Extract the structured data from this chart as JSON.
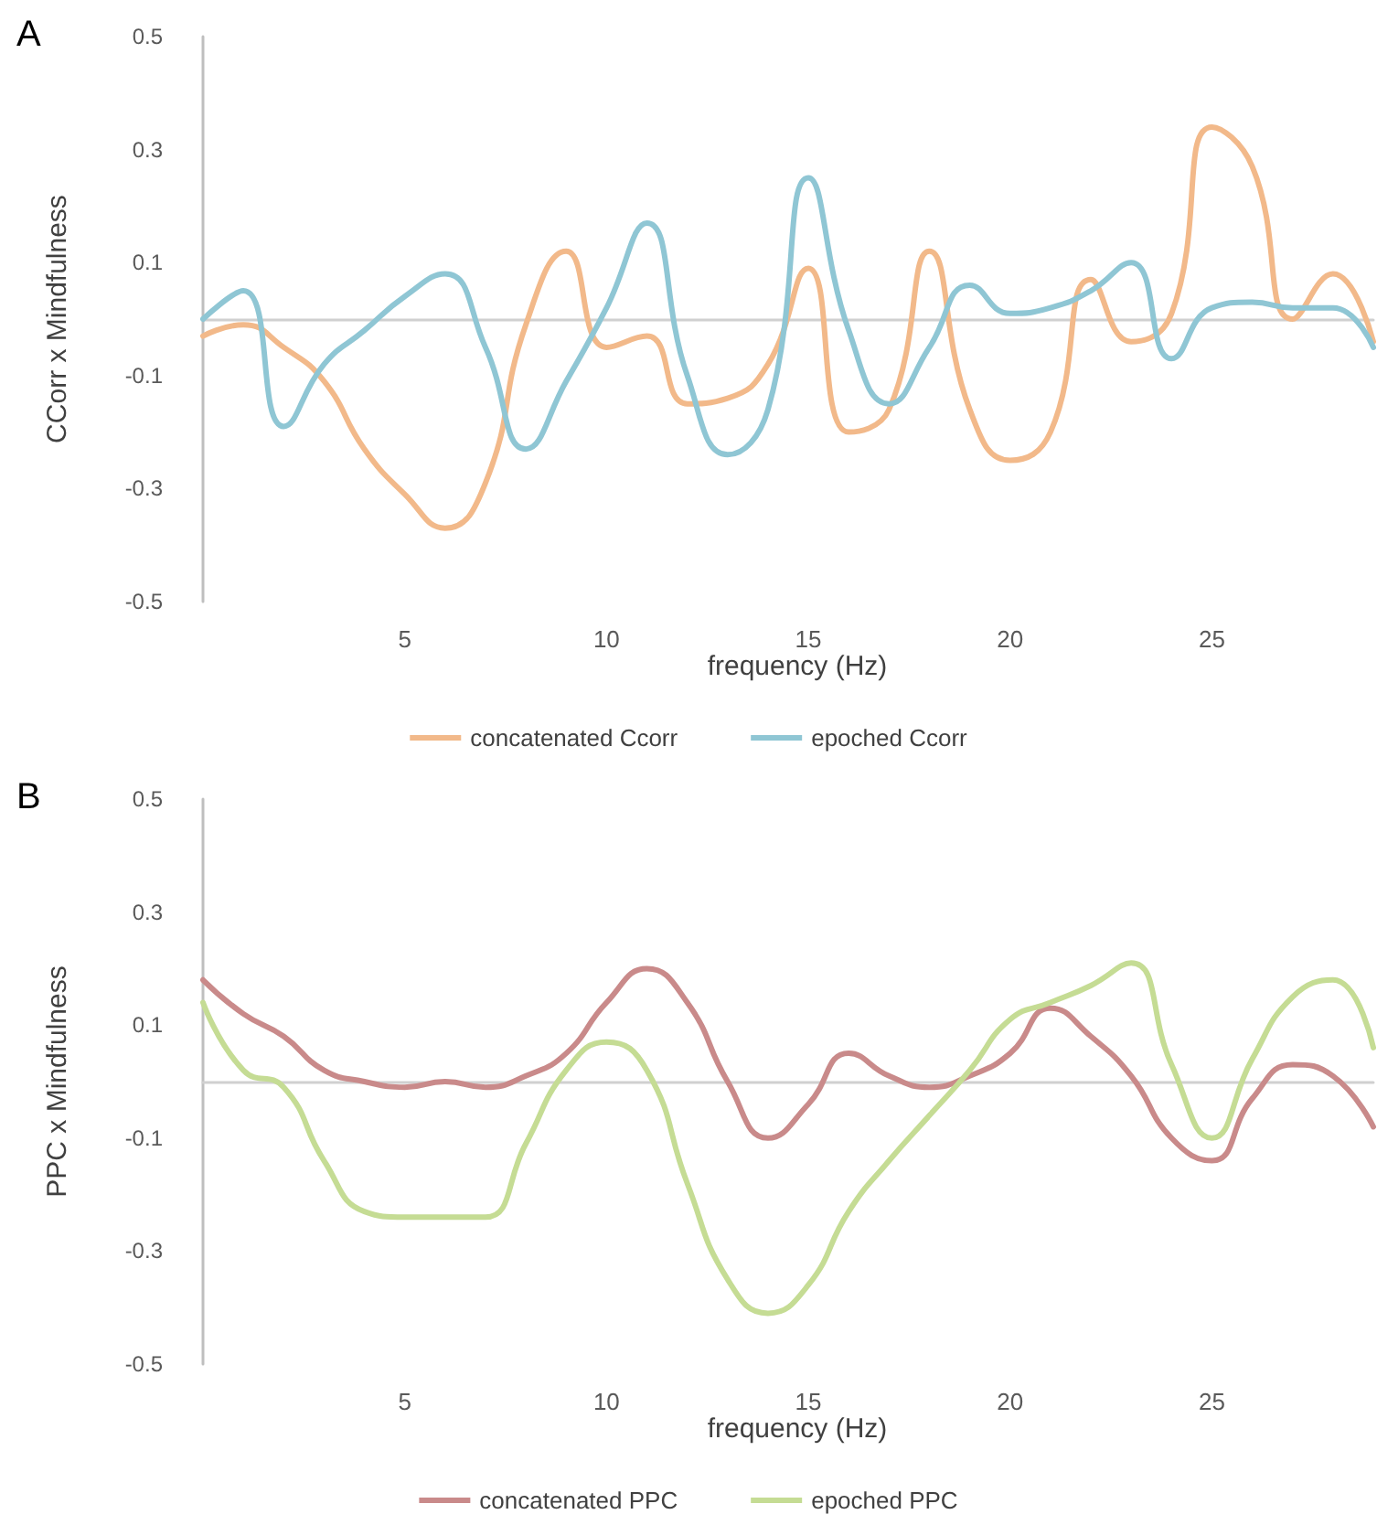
{
  "chart_data": [
    {
      "type": "line",
      "title": "A",
      "xlabel": "frequency (Hz)",
      "ylabel": "CCorr x Mindfulness",
      "categories": [
        null,
        null,
        null,
        null,
        null,
        "5",
        null,
        null,
        null,
        null,
        "10",
        null,
        null,
        null,
        null,
        "15",
        null,
        null,
        null,
        null,
        "20",
        null,
        null,
        null,
        null,
        "25",
        null,
        null,
        null,
        null
      ],
      "series": [
        {
          "name": "concatenated Ccorr",
          "color": "#f2b98a",
          "values": [
            -0.03,
            -0.01,
            -0.05,
            -0.11,
            -0.23,
            -0.31,
            -0.37,
            -0.29,
            -0.01,
            0.12,
            -0.05,
            -0.03,
            -0.15,
            -0.14,
            -0.08,
            0.09,
            -0.2,
            -0.16,
            0.12,
            -0.16,
            -0.25,
            -0.2,
            0.07,
            -0.04,
            0.01,
            0.34,
            0.27,
            0.0,
            0.08,
            -0.04
          ]
        },
        {
          "name": "epoched Ccorr",
          "color": "#8fc6d4",
          "values": [
            0.0,
            0.05,
            -0.19,
            -0.08,
            -0.02,
            0.04,
            0.08,
            -0.05,
            -0.23,
            -0.11,
            0.02,
            0.17,
            -0.1,
            -0.24,
            -0.16,
            0.25,
            -0.02,
            -0.15,
            -0.05,
            0.06,
            0.01,
            0.02,
            0.05,
            0.1,
            -0.07,
            0.02,
            0.03,
            0.02,
            0.02,
            -0.05
          ]
        }
      ],
      "ylim": [
        -0.5,
        0.5
      ],
      "yticks": [
        -0.5,
        -0.3,
        -0.1,
        0.1,
        0.3,
        0.5
      ],
      "grid": false,
      "legend": "bottom",
      "marker": "none",
      "line_style": "solid"
    },
    {
      "type": "line",
      "title": "B",
      "xlabel": "frequency (Hz)",
      "ylabel": "PPC x Mindfulness",
      "categories": [
        null,
        null,
        null,
        null,
        null,
        "5",
        null,
        null,
        null,
        null,
        "10",
        null,
        null,
        null,
        null,
        "15",
        null,
        null,
        null,
        null,
        "20",
        null,
        null,
        null,
        null,
        "25",
        null,
        null,
        null,
        null
      ],
      "series": [
        {
          "name": "concatenated PPC",
          "color": "#c98a8a",
          "values": [
            0.18,
            0.12,
            0.08,
            0.02,
            0.0,
            -0.01,
            0.0,
            -0.01,
            0.01,
            0.05,
            0.14,
            0.2,
            0.14,
            0.0,
            -0.1,
            -0.04,
            0.05,
            0.01,
            -0.01,
            0.01,
            0.05,
            0.13,
            0.08,
            0.01,
            -0.1,
            -0.14,
            -0.03,
            0.03,
            0.01,
            -0.08
          ]
        },
        {
          "name": "epoched PPC",
          "color": "#c5dc94",
          "values": [
            0.14,
            0.02,
            -0.01,
            -0.14,
            -0.23,
            -0.24,
            -0.24,
            -0.24,
            -0.11,
            0.02,
            0.07,
            0.02,
            -0.18,
            -0.35,
            -0.41,
            -0.36,
            -0.23,
            -0.14,
            -0.06,
            0.02,
            0.11,
            0.14,
            0.17,
            0.21,
            0.03,
            -0.1,
            0.04,
            0.15,
            0.18,
            0.06
          ]
        }
      ],
      "ylim": [
        -0.5,
        0.5
      ],
      "yticks": [
        -0.5,
        -0.3,
        -0.1,
        0.1,
        0.3,
        0.5
      ],
      "grid": false,
      "legend": "bottom",
      "marker": "none",
      "line_style": "solid"
    }
  ]
}
